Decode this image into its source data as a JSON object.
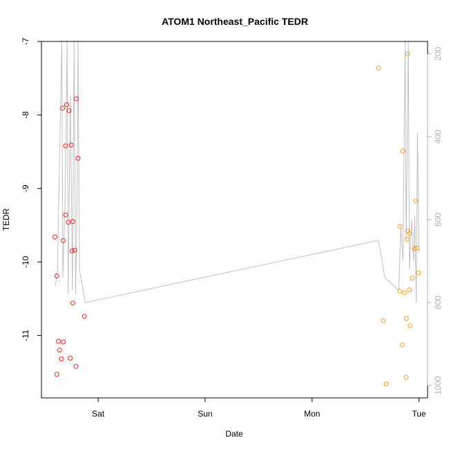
{
  "chart_data": {
    "type": "scatter",
    "title": "ATOM1 Northeast_Pacific TEDR",
    "xlabel": "Date",
    "ylabel": "TEDR",
    "y_right_label": "",
    "x_ticks": [
      {
        "day": 1.0,
        "label": "Sat"
      },
      {
        "day": 2.0,
        "label": "Sun"
      },
      {
        "day": 3.0,
        "label": "Mon"
      },
      {
        "day": 4.0,
        "label": "Tue"
      }
    ],
    "xlim": [
      0.47,
      4.08
    ],
    "ylim": [
      -11.85,
      -7.0
    ],
    "y_ticks": [
      -11,
      -10,
      -9,
      -8,
      -7
    ],
    "y_right_lim": [
      1030,
      170
    ],
    "y_right_ticks": [
      200,
      400,
      600,
      800,
      1000
    ],
    "colors": {
      "series1": "#e8231e",
      "series2": "#f39c2d",
      "altitude_line": "#c0c0c0",
      "right_axis": "#b0b0b0"
    },
    "series": [
      {
        "points": [
          [
            0.596,
            -9.66
          ],
          [
            0.614,
            -10.19
          ],
          [
            0.628,
            -11.08
          ],
          [
            0.639,
            -11.2
          ],
          [
            0.614,
            -11.53
          ],
          [
            0.657,
            -11.32
          ],
          [
            0.667,
            -7.91
          ],
          [
            0.674,
            -9.71
          ],
          [
            0.674,
            -11.09
          ],
          [
            0.696,
            -9.36
          ],
          [
            0.696,
            -8.42
          ],
          [
            0.706,
            -7.86
          ],
          [
            0.721,
            -9.46
          ],
          [
            0.728,
            -7.94
          ],
          [
            0.739,
            -11.31
          ],
          [
            0.749,
            -8.41
          ],
          [
            0.756,
            -9.85
          ],
          [
            0.763,
            -9.45
          ],
          [
            0.763,
            -10.56
          ],
          [
            0.782,
            -9.84
          ],
          [
            0.792,
            -11.42
          ],
          [
            0.796,
            -7.78
          ],
          [
            0.812,
            -8.59
          ],
          [
            0.872,
            -10.74
          ]
        ]
      },
      {
        "points": [
          [
            3.62,
            -7.36
          ],
          [
            3.666,
            -10.8
          ],
          [
            3.694,
            -11.66
          ],
          [
            3.822,
            -9.52
          ],
          [
            3.822,
            -10.4
          ],
          [
            3.844,
            -11.13
          ],
          [
            3.849,
            -8.49
          ],
          [
            3.863,
            -10.42
          ],
          [
            3.88,
            -11.57
          ],
          [
            3.882,
            -10.77
          ],
          [
            3.888,
            -9.69
          ],
          [
            3.894,
            -7.17
          ],
          [
            3.894,
            -9.58
          ],
          [
            3.91,
            -10.38
          ],
          [
            3.91,
            -9.61
          ],
          [
            3.916,
            -10.87
          ],
          [
            3.937,
            -10.22
          ],
          [
            3.957,
            -9.82
          ],
          [
            3.968,
            -9.17
          ],
          [
            3.98,
            -9.81
          ],
          [
            3.994,
            -10.15
          ]
        ]
      }
    ],
    "altitude_line": [
      [
        0.6,
        760
      ],
      [
        0.62,
        720
      ],
      [
        0.66,
        170
      ],
      [
        0.67,
        740
      ],
      [
        0.69,
        560
      ],
      [
        0.71,
        170
      ],
      [
        0.72,
        780
      ],
      [
        0.74,
        300
      ],
      [
        0.76,
        770
      ],
      [
        0.775,
        170
      ],
      [
        0.79,
        780
      ],
      [
        0.805,
        520
      ],
      [
        0.812,
        170
      ],
      [
        0.825,
        720
      ],
      [
        0.88,
        800
      ],
      [
        3.62,
        650
      ],
      [
        3.68,
        740
      ],
      [
        3.81,
        770
      ],
      [
        3.83,
        620
      ],
      [
        3.85,
        700
      ],
      [
        3.87,
        170
      ],
      [
        3.88,
        650
      ],
      [
        3.9,
        170
      ],
      [
        3.91,
        720
      ],
      [
        3.93,
        600
      ],
      [
        3.95,
        700
      ],
      [
        3.96,
        590
      ],
      [
        3.975,
        800
      ],
      [
        3.985,
        390
      ],
      [
        4.0,
        680
      ]
    ]
  }
}
